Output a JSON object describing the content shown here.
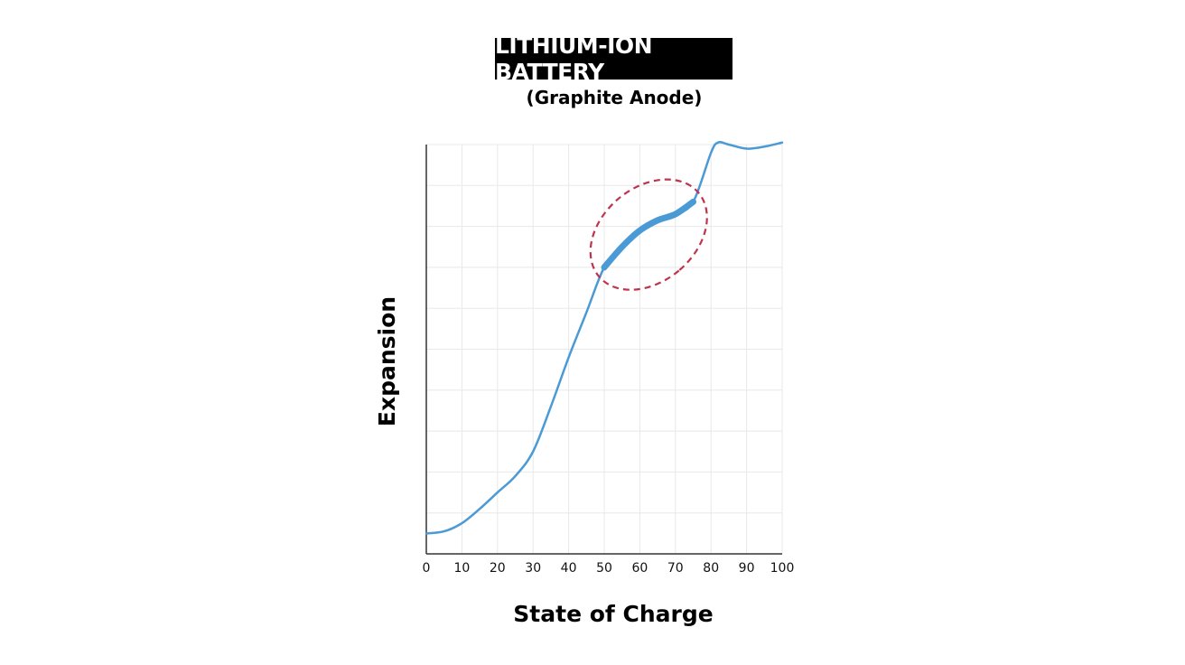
{
  "chart_data": {
    "type": "line",
    "title": "LITHIUM-ION BATTERY",
    "subtitle": "(Graphite Anode)",
    "xlabel": "State of Charge",
    "ylabel": "Expansion",
    "xlim": [
      0,
      100
    ],
    "ylim": [
      0,
      10
    ],
    "x_ticks": [
      "0",
      "10",
      "20",
      "30",
      "40",
      "50",
      "60",
      "70",
      "80",
      "90",
      "100"
    ],
    "y_ticks_labeled": false,
    "grid": true,
    "series": [
      {
        "color": "#4a9ad6",
        "points": [
          [
            0,
            0.5
          ],
          [
            5,
            0.55
          ],
          [
            10,
            0.75
          ],
          [
            15,
            1.1
          ],
          [
            20,
            1.5
          ],
          [
            25,
            1.9
          ],
          [
            30,
            2.5
          ],
          [
            35,
            3.6
          ],
          [
            40,
            4.8
          ],
          [
            45,
            5.9
          ],
          [
            50,
            7.0
          ],
          [
            55,
            7.5
          ],
          [
            60,
            7.9
          ],
          [
            65,
            8.15
          ],
          [
            70,
            8.3
          ],
          [
            75,
            8.6
          ],
          [
            80,
            9.8
          ],
          [
            82,
            10.05
          ],
          [
            85,
            10.0
          ],
          [
            90,
            9.9
          ],
          [
            95,
            9.95
          ],
          [
            100,
            10.05
          ]
        ]
      }
    ],
    "highlight": {
      "x_range": [
        50,
        75
      ],
      "color": "#c0334d",
      "style": "dashed-ellipse"
    }
  }
}
